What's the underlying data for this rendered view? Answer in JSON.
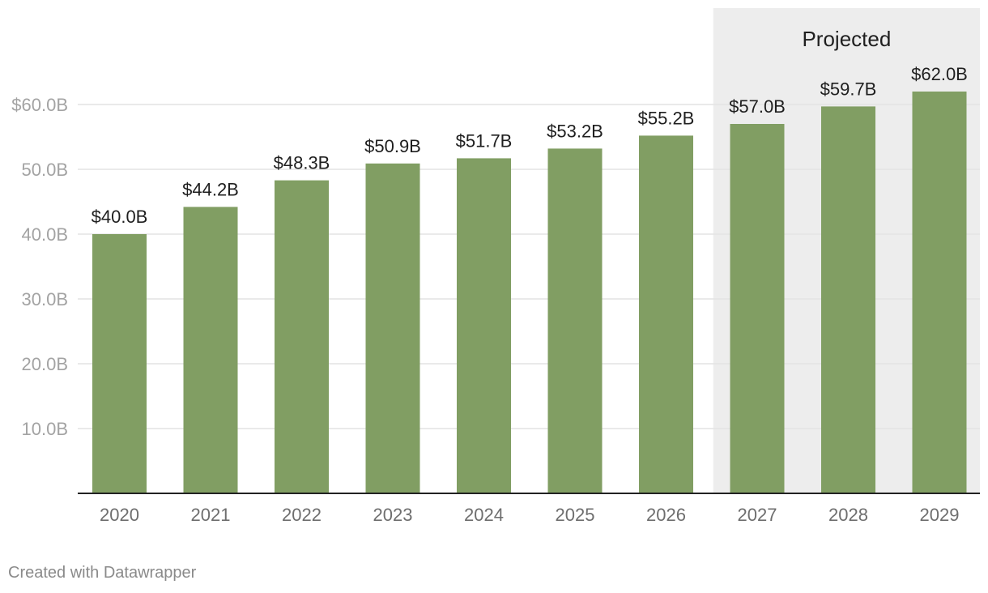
{
  "chart_data": {
    "type": "bar",
    "categories": [
      "2020",
      "2021",
      "2022",
      "2023",
      "2024",
      "2025",
      "2026",
      "2027",
      "2028",
      "2029"
    ],
    "values": [
      40.0,
      44.2,
      48.3,
      50.9,
      51.7,
      53.2,
      55.2,
      57.0,
      59.7,
      62.0
    ],
    "data_labels": [
      "$40.0B",
      "$44.2B",
      "$48.3B",
      "$50.9B",
      "$51.7B",
      "$53.2B",
      "$55.2B",
      "$57.0B",
      "$59.7B",
      "$62.0B"
    ],
    "y_ticks": [
      10,
      20,
      30,
      40,
      50,
      60
    ],
    "y_tick_labels": [
      "10.0B",
      "20.0B",
      "30.0B",
      "40.0B",
      "50.0B",
      "$60.0B"
    ],
    "ylim": [
      0,
      60
    ],
    "grid": true,
    "highlight_region": {
      "label": "Projected",
      "from_category": "2027",
      "to_category": "2029"
    },
    "colors": {
      "bar": "#819e63",
      "shade": "#ededed",
      "grid": "#e3e3e3",
      "axis": "#222222"
    }
  },
  "footer": {
    "credit": "Created with Datawrapper"
  }
}
